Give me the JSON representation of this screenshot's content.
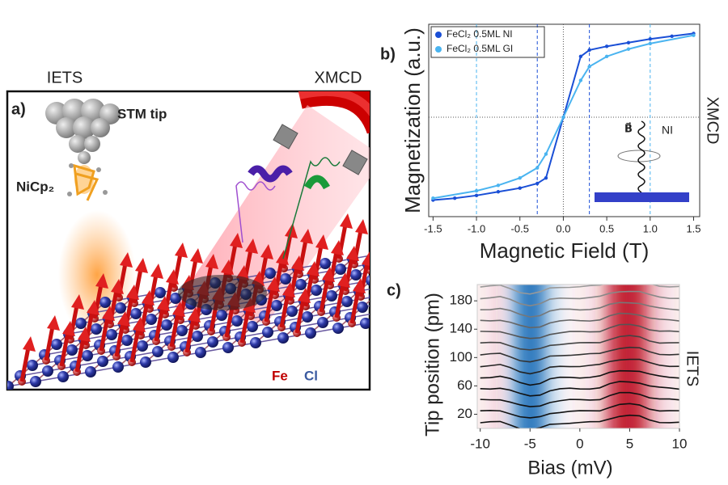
{
  "illustration": {
    "panel": "a)",
    "left_label": "IETS",
    "right_label": "XMCD",
    "tip_label": "STM tip",
    "molecule_label": "NiCp₂",
    "fe_label": "Fe",
    "cl_label": "Cl"
  },
  "chart_data": [
    {
      "type": "line",
      "panel": "b)",
      "side_label": "XMCD",
      "x_label": "Magnetic Field (T)",
      "y_label": "Magnetization (a.u.)",
      "xlim": [
        -1.55,
        1.57
      ],
      "ylim": [
        -1.08,
        1.01
      ],
      "xticks": [
        -1.5,
        -1.0,
        -0.5,
        0.0,
        0.5,
        1.0,
        1.5
      ],
      "xtick_labels": [
        "-1.5",
        "-1.0",
        "-0.5",
        "0.0",
        "0.5",
        "1.0",
        "1.5"
      ],
      "vlines": [
        {
          "value": -1.0,
          "color": "#4ab4f0"
        },
        {
          "value": -0.3,
          "color": "#1a4fd6"
        },
        {
          "value": 0.3,
          "color": "#1a4fd6"
        },
        {
          "value": 1.0,
          "color": "#4ab4f0"
        }
      ],
      "legend": "top-left",
      "inset": {
        "field": "B⃗",
        "mode": "NI"
      },
      "series": [
        {
          "name": "FeCl₂ 0.5ML NI",
          "color": "#1a4fd6",
          "x": [
            -1.5,
            -1.25,
            -1.0,
            -0.75,
            -0.5,
            -0.3,
            -0.2,
            0.0,
            0.2,
            0.3,
            0.5,
            0.75,
            1.0,
            1.25,
            1.5
          ],
          "values": [
            -0.9,
            -0.88,
            -0.85,
            -0.81,
            -0.77,
            -0.72,
            -0.66,
            0.0,
            0.66,
            0.73,
            0.77,
            0.81,
            0.85,
            0.88,
            0.91
          ]
        },
        {
          "name": "FeCl₂ 0.5ML GI",
          "color": "#4ab4f0",
          "x": [
            -1.5,
            -1.0,
            -0.75,
            -0.5,
            -0.3,
            -0.2,
            0.0,
            0.2,
            0.3,
            0.5,
            0.75,
            1.0,
            1.5
          ],
          "values": [
            -0.88,
            -0.8,
            -0.74,
            -0.66,
            -0.55,
            -0.4,
            0.0,
            0.4,
            0.55,
            0.66,
            0.74,
            0.8,
            0.89
          ]
        }
      ]
    },
    {
      "type": "heatmap",
      "panel": "c)",
      "side_label": "IETS",
      "x_label": "Bias (mV)",
      "y_label": "Tip position (pm)",
      "xlim": [
        -10.3,
        10.0
      ],
      "ylim": [
        0,
        203
      ],
      "xticks": [
        -10,
        -5,
        0,
        5,
        10
      ],
      "yticks": [
        20,
        60,
        100,
        140,
        180
      ],
      "profile": {
        "x": [
          -10,
          -9,
          -8,
          -7,
          -6,
          -5,
          -4,
          -3,
          -2,
          -1,
          0,
          1,
          2,
          3,
          4,
          5,
          6,
          7,
          8,
          9,
          10
        ],
        "values": [
          0,
          0.2,
          0.5,
          -1,
          -3,
          -4,
          -3.2,
          -1,
          -0.3,
          0,
          0,
          0.2,
          0.6,
          2.5,
          3.8,
          4,
          3.5,
          1.6,
          0.5,
          0.2,
          0
        ]
      },
      "traces": {
        "offsets": [
          8,
          24,
          40,
          56,
          72,
          88,
          104,
          120,
          136,
          152,
          168,
          184,
          200
        ],
        "colors": [
          "#111",
          "#111",
          "#111",
          "#111",
          "#111",
          "#222",
          "#333",
          "#444",
          "#555",
          "#666",
          "#777",
          "#888",
          "#999"
        ]
      }
    }
  ]
}
